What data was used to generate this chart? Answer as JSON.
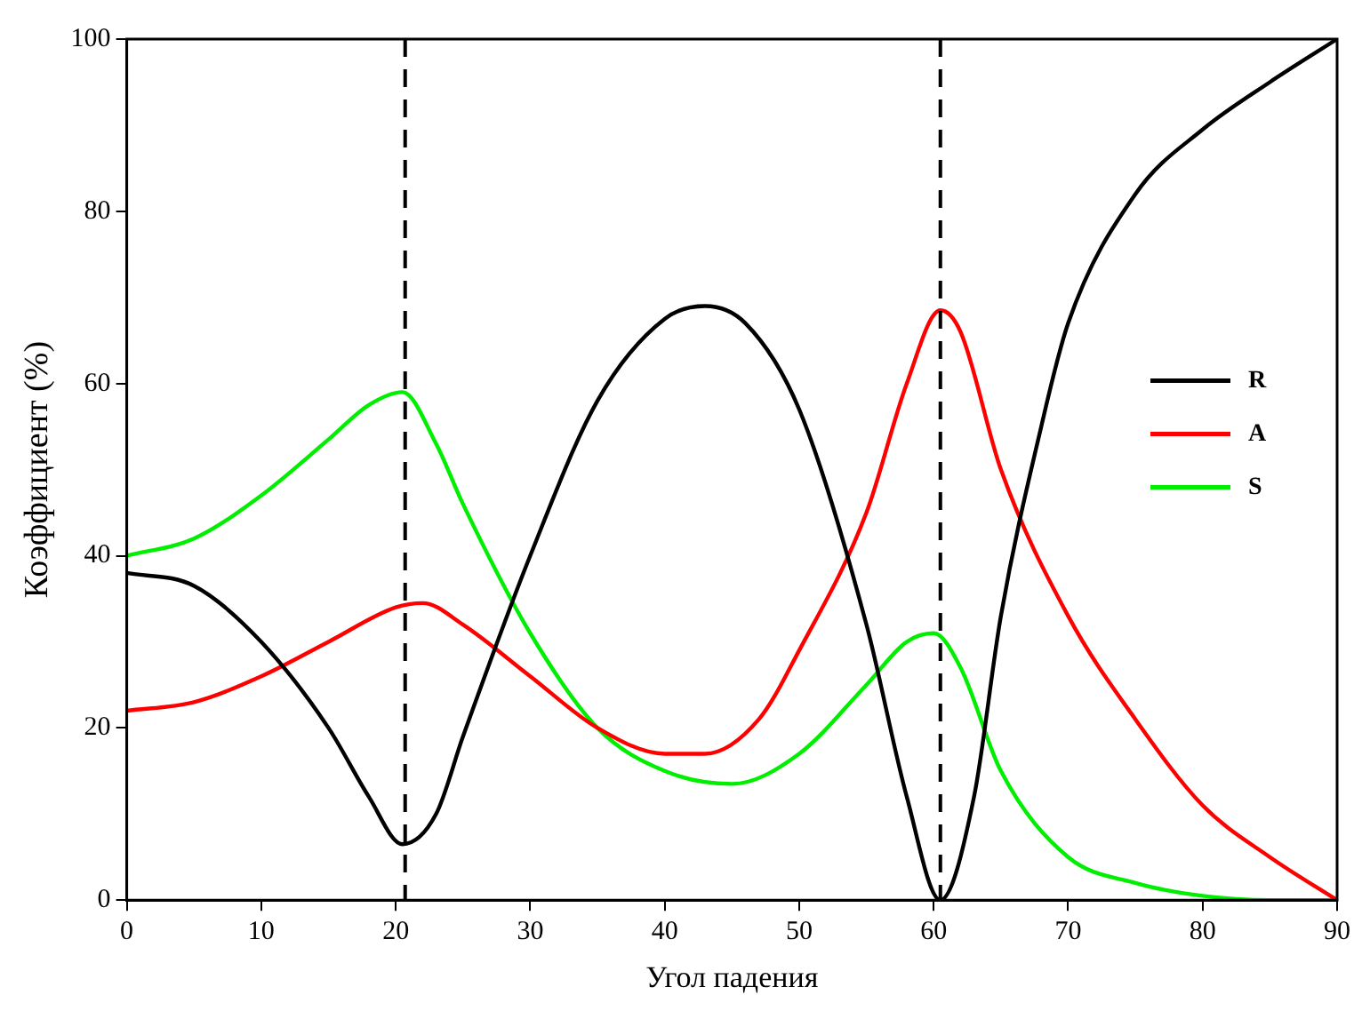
{
  "chart_data": {
    "type": "line",
    "xlabel": "Угол падения",
    "ylabel": "Коэффициент (%)",
    "xlim": [
      0,
      90
    ],
    "ylim": [
      0,
      100
    ],
    "xticks": [
      0,
      10,
      20,
      30,
      40,
      50,
      60,
      70,
      80,
      90
    ],
    "yticks": [
      0,
      20,
      40,
      60,
      80,
      100
    ],
    "grid": false,
    "legend": "right",
    "marker": "none",
    "line_style": "solid",
    "ref_lines": [
      {
        "axis": "x",
        "value": 20.7,
        "color": "#000000",
        "line_style": "dashed"
      },
      {
        "axis": "x",
        "value": 60.5,
        "color": "#000000",
        "line_style": "dashed"
      }
    ],
    "series": [
      {
        "name": "R",
        "color": "#000000",
        "x": [
          0,
          5,
          10,
          15,
          18,
          20.5,
          23,
          25,
          30,
          35,
          40,
          43,
          46,
          50,
          55,
          58,
          60.5,
          63,
          65,
          68,
          70,
          75,
          80,
          85,
          90
        ],
        "values": [
          38,
          36.5,
          30,
          20,
          12,
          6.5,
          10,
          19,
          40,
          58,
          67.5,
          69,
          67,
          57,
          32,
          12,
          0,
          12,
          33,
          55,
          67,
          82,
          89.5,
          95,
          100
        ]
      },
      {
        "name": "A",
        "color": "#ff0000",
        "x": [
          0,
          5,
          10,
          15,
          20,
          22,
          25,
          30,
          35,
          40,
          43,
          47,
          50,
          55,
          58,
          60.5,
          62,
          65,
          70,
          75,
          80,
          85,
          90
        ],
        "values": [
          22,
          23,
          26,
          30,
          34,
          34.5,
          32,
          26,
          20,
          17,
          17,
          21,
          29,
          45,
          60,
          68.5,
          66,
          50,
          33,
          21,
          11,
          5,
          0
        ]
      },
      {
        "name": "S",
        "color": "#00ee00",
        "x": [
          0,
          5,
          10,
          15,
          18,
          20.5,
          23,
          25,
          30,
          35,
          40,
          45,
          50,
          55,
          58,
          60,
          62,
          65,
          70,
          75,
          80,
          85,
          90
        ],
        "values": [
          40,
          42,
          47,
          53.5,
          57.5,
          59,
          53,
          46,
          31,
          20,
          15,
          13.5,
          17,
          25,
          30,
          31,
          27,
          15,
          5,
          2,
          0.5,
          0,
          0
        ]
      }
    ]
  }
}
